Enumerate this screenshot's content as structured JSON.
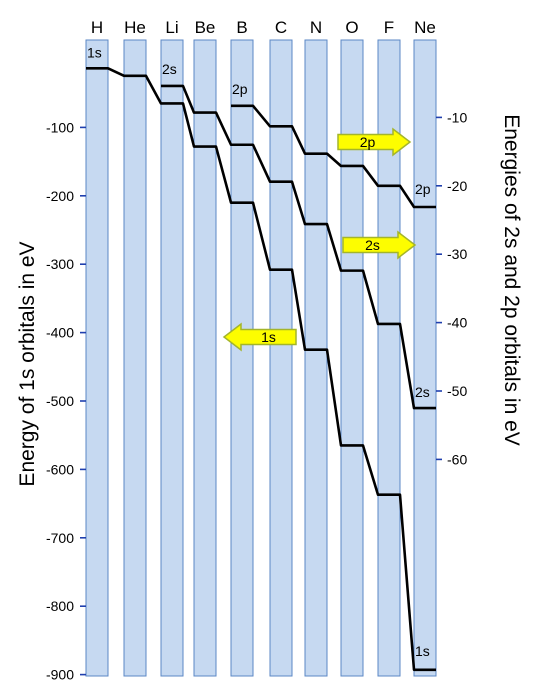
{
  "chart_data": {
    "type": "line",
    "title": "",
    "elements": [
      "H",
      "He",
      "Li",
      "Be",
      "B",
      "C",
      "N",
      "O",
      "F",
      "Ne"
    ],
    "left_axis": {
      "label": "Energy of 1s orbitals in eV",
      "ylim": [
        0,
        -900
      ],
      "ticks": [
        -100,
        -200,
        -300,
        -400,
        -500,
        -600,
        -700,
        -800,
        -900
      ]
    },
    "right_axis": {
      "label": "Energies of 2s and 2p orbitals in eV",
      "ylim": [
        0,
        -60
      ],
      "ticks": [
        -10,
        -20,
        -30,
        -40,
        -50,
        -60
      ]
    },
    "series": [
      {
        "name": "1s",
        "axis": "left",
        "start": "H",
        "values": [
          -13.6,
          -24.6,
          -65,
          -128,
          -210,
          -308,
          -425,
          -565,
          -637,
          -893
        ]
      },
      {
        "name": "2s",
        "axis": "right",
        "start": "Li",
        "values": [
          -5.4,
          -9.3,
          -14.0,
          -19.4,
          -25.6,
          -32.4,
          -40.2,
          -52.5
        ]
      },
      {
        "name": "2p",
        "axis": "right",
        "start": "B",
        "values": [
          -8.3,
          -11.3,
          -15.3,
          -17.1,
          -20.0,
          -23.1
        ]
      }
    ],
    "curve_labels": [
      {
        "text": "1s",
        "element": "H"
      },
      {
        "text": "2s",
        "element": "Li"
      },
      {
        "text": "2p",
        "element": "B"
      },
      {
        "text": "2p",
        "element": "Ne"
      },
      {
        "text": "2s",
        "element": "Ne"
      },
      {
        "text": "1s",
        "element": "Ne"
      }
    ],
    "arrows": [
      {
        "text": "2p",
        "direction": "right"
      },
      {
        "text": "2s",
        "direction": "right"
      },
      {
        "text": "1s",
        "direction": "left"
      }
    ],
    "colors": {
      "column_fill": "#c6d9f1",
      "column_stroke": "#5b87c5",
      "line": "#000000",
      "arrow_fill": "#fdfd00",
      "arrow_stroke": "#a4b52a",
      "tick": "#1f3fae"
    },
    "grid": false
  }
}
